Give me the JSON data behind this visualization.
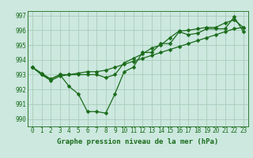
{
  "title": "Graphe pression niveau de la mer (hPa)",
  "background_color": "#cce8df",
  "grid_color": "#aaccbb",
  "line_color": "#1a6b1a",
  "marker_color": "#1a6b1a",
  "xlim": [
    -0.5,
    23.5
  ],
  "ylim": [
    989.5,
    997.3
  ],
  "yticks": [
    990,
    991,
    992,
    993,
    994,
    995,
    996,
    997
  ],
  "xticks": [
    0,
    1,
    2,
    3,
    4,
    5,
    6,
    7,
    8,
    9,
    10,
    11,
    12,
    13,
    14,
    15,
    16,
    17,
    18,
    19,
    20,
    21,
    22,
    23
  ],
  "series": [
    [
      993.5,
      993.1,
      992.7,
      993.0,
      992.2,
      991.7,
      990.5,
      990.5,
      990.4,
      991.7,
      993.2,
      993.5,
      994.5,
      994.5,
      995.1,
      995.1,
      995.9,
      995.7,
      995.8,
      996.1,
      996.1,
      996.1,
      996.9,
      995.9
    ],
    [
      993.5,
      993.0,
      992.6,
      992.9,
      993.0,
      993.0,
      993.0,
      993.0,
      992.8,
      993.0,
      993.8,
      994.1,
      994.4,
      994.8,
      995.0,
      995.5,
      995.95,
      996.0,
      996.1,
      996.2,
      996.2,
      996.5,
      996.7,
      996.2
    ],
    [
      993.5,
      993.0,
      992.7,
      993.0,
      993.0,
      993.1,
      993.2,
      993.2,
      993.3,
      993.5,
      993.7,
      993.9,
      994.1,
      994.3,
      994.5,
      994.7,
      994.9,
      995.1,
      995.3,
      995.5,
      995.7,
      995.9,
      996.1,
      996.2
    ]
  ],
  "marker_size": 2.5,
  "linewidth": 0.9,
  "tick_fontsize": 5.5,
  "title_fontsize": 6.5
}
